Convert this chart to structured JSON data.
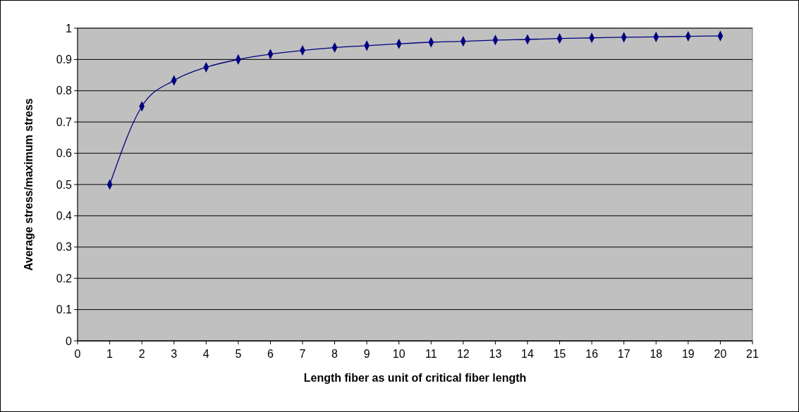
{
  "chart_data": {
    "type": "line",
    "xlabel": "Length fiber as unit of critical fiber length",
    "ylabel": "Average stress/maximum stress",
    "x": [
      1,
      2,
      3,
      4,
      5,
      6,
      7,
      8,
      9,
      10,
      11,
      12,
      13,
      14,
      15,
      16,
      17,
      18,
      19,
      20
    ],
    "series": [
      {
        "color": "#000080",
        "values": [
          0.5,
          0.75,
          0.833,
          0.875,
          0.9,
          0.917,
          0.929,
          0.938,
          0.944,
          0.95,
          0.955,
          0.958,
          0.962,
          0.964,
          0.967,
          0.969,
          0.971,
          0.972,
          0.974,
          0.975
        ]
      }
    ],
    "xlim": [
      0,
      21
    ],
    "xticks": [
      0,
      1,
      2,
      3,
      4,
      5,
      6,
      7,
      8,
      9,
      10,
      11,
      12,
      13,
      14,
      15,
      16,
      17,
      18,
      19,
      20,
      21
    ],
    "ylim": [
      0,
      1
    ],
    "yticks": [
      0,
      0.1,
      0.2,
      0.3,
      0.4,
      0.5,
      0.6,
      0.7,
      0.8,
      0.9,
      1
    ],
    "grid": "y",
    "marker": "diamond",
    "line_style": "solid"
  }
}
